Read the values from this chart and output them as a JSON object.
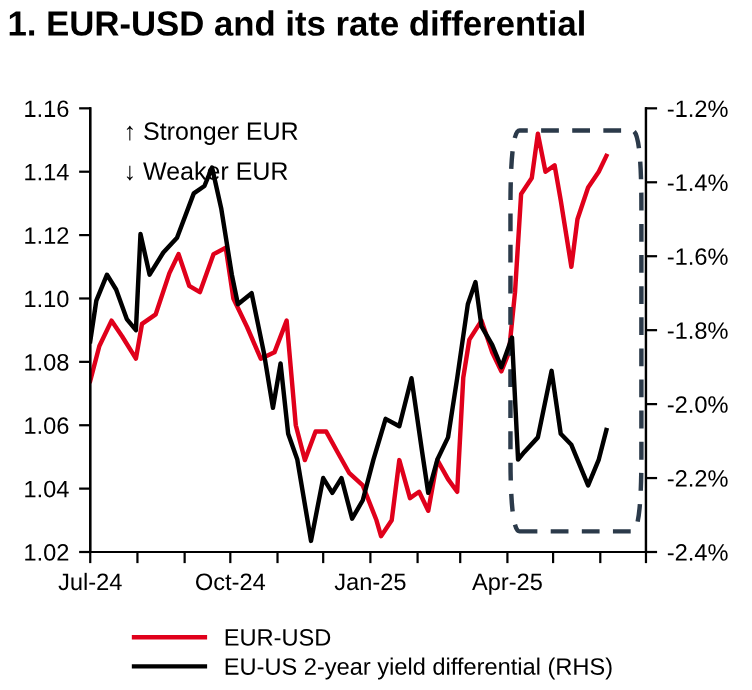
{
  "chart_data": {
    "type": "line",
    "title": "1. EUR-USD and its rate differential",
    "annotations": [
      "↑ Stronger EUR",
      "↓ Weaker EUR"
    ],
    "xlim": [
      "2024-07-01",
      "2025-07-01"
    ],
    "xticks": [
      {
        "value": "2024-07-01",
        "label": "Jul-24"
      },
      {
        "value": "2024-08-01",
        "label": null
      },
      {
        "value": "2024-09-01",
        "label": null
      },
      {
        "value": "2024-10-01",
        "label": "Oct-24"
      },
      {
        "value": "2024-11-01",
        "label": null
      },
      {
        "value": "2024-12-01",
        "label": null
      },
      {
        "value": "2025-01-01",
        "label": "Jan-25"
      },
      {
        "value": "2025-02-01",
        "label": null
      },
      {
        "value": "2025-03-01",
        "label": null
      },
      {
        "value": "2025-04-01",
        "label": "Apr-25"
      },
      {
        "value": "2025-05-01",
        "label": null
      },
      {
        "value": "2025-06-01",
        "label": null
      },
      {
        "value": "2025-07-01",
        "label": null
      }
    ],
    "ylim": [
      1.02,
      1.16
    ],
    "yticks": [
      {
        "value": 1.02,
        "label": "1.02"
      },
      {
        "value": 1.04,
        "label": "1.04"
      },
      {
        "value": 1.06,
        "label": "1.06"
      },
      {
        "value": 1.08,
        "label": "1.08"
      },
      {
        "value": 1.1,
        "label": "1.10"
      },
      {
        "value": 1.12,
        "label": "1.12"
      },
      {
        "value": 1.14,
        "label": "1.14"
      },
      {
        "value": 1.16,
        "label": "1.16"
      }
    ],
    "y2lim": [
      -2.4,
      -1.2
    ],
    "y2ticks": [
      {
        "value": -2.4,
        "label": "-2.4%"
      },
      {
        "value": -2.2,
        "label": "-2.2%"
      },
      {
        "value": -2.0,
        "label": "-2.0%"
      },
      {
        "value": -1.8,
        "label": "-1.8%"
      },
      {
        "value": -1.6,
        "label": "-1.6%"
      },
      {
        "value": -1.4,
        "label": "-1.4%"
      },
      {
        "value": -1.2,
        "label": "-1.2%"
      }
    ],
    "grid": false,
    "legend": "bottom",
    "series": [
      {
        "name": "EUR-USD",
        "color": "#e0001b",
        "x": [
          "2024-07-01",
          "2024-07-07",
          "2024-07-15",
          "2024-07-22",
          "2024-07-31",
          "2024-08-04",
          "2024-08-13",
          "2024-08-22",
          "2024-08-28",
          "2024-09-04",
          "2024-09-11",
          "2024-09-20",
          "2024-09-28",
          "2024-10-03",
          "2024-10-12",
          "2024-10-21",
          "2024-10-30",
          "2024-11-07",
          "2024-11-13",
          "2024-11-19",
          "2024-11-26",
          "2024-12-03",
          "2024-12-11",
          "2024-12-18",
          "2024-12-27",
          "2025-01-05",
          "2025-01-08",
          "2025-01-15",
          "2025-01-20",
          "2025-01-27",
          "2025-02-02",
          "2025-02-08",
          "2025-02-14",
          "2025-02-21",
          "2025-02-27",
          "2025-03-03",
          "2025-03-07",
          "2025-03-15",
          "2025-03-22",
          "2025-03-28",
          "2025-04-02",
          "2025-04-06",
          "2025-04-10",
          "2025-04-17",
          "2025-04-21",
          "2025-04-26",
          "2025-05-02",
          "2025-05-06",
          "2025-05-13",
          "2025-05-17",
          "2025-05-24",
          "2025-05-31",
          "2025-06-05"
        ],
        "values": [
          1.074,
          1.085,
          1.093,
          1.088,
          1.081,
          1.092,
          1.095,
          1.108,
          1.114,
          1.104,
          1.102,
          1.114,
          1.116,
          1.1,
          1.091,
          1.081,
          1.083,
          1.093,
          1.06,
          1.049,
          1.058,
          1.058,
          1.051,
          1.045,
          1.041,
          1.03,
          1.025,
          1.03,
          1.049,
          1.037,
          1.039,
          1.033,
          1.049,
          1.043,
          1.039,
          1.075,
          1.087,
          1.093,
          1.083,
          1.077,
          1.083,
          1.102,
          1.133,
          1.138,
          1.152,
          1.14,
          1.142,
          1.131,
          1.11,
          1.125,
          1.135,
          1.14,
          1.145
        ]
      },
      {
        "name": "EU-US 2-year yield differential (RHS)",
        "color": "#000000",
        "axis": "y2",
        "x": [
          "2024-07-01",
          "2024-07-05",
          "2024-07-12",
          "2024-07-18",
          "2024-07-25",
          "2024-07-31",
          "2024-08-03",
          "2024-08-09",
          "2024-08-18",
          "2024-08-27",
          "2024-09-07",
          "2024-09-14",
          "2024-09-19",
          "2024-09-25",
          "2024-10-02",
          "2024-10-06",
          "2024-10-15",
          "2024-10-23",
          "2024-10-29",
          "2024-11-03",
          "2024-11-08",
          "2024-11-14",
          "2024-11-23",
          "2024-12-01",
          "2024-12-07",
          "2024-12-13",
          "2024-12-20",
          "2024-12-27",
          "2025-01-03",
          "2025-01-11",
          "2025-01-20",
          "2025-01-28",
          "2025-02-04",
          "2025-02-08",
          "2025-02-14",
          "2025-02-21",
          "2025-02-27",
          "2025-03-06",
          "2025-03-11",
          "2025-03-15",
          "2025-03-22",
          "2025-03-28",
          "2025-04-04",
          "2025-04-08",
          "2025-04-12",
          "2025-04-21",
          "2025-04-30",
          "2025-05-06",
          "2025-05-13",
          "2025-05-24",
          "2025-05-31",
          "2025-06-05"
        ],
        "values": [
          -1.83,
          -1.72,
          -1.65,
          -1.69,
          -1.77,
          -1.8,
          -1.54,
          -1.65,
          -1.59,
          -1.55,
          -1.43,
          -1.41,
          -1.36,
          -1.47,
          -1.65,
          -1.73,
          -1.7,
          -1.86,
          -2.01,
          -1.89,
          -2.08,
          -2.15,
          -2.37,
          -2.2,
          -2.24,
          -2.2,
          -2.31,
          -2.26,
          -2.15,
          -2.04,
          -2.06,
          -1.93,
          -2.13,
          -2.24,
          -2.15,
          -2.09,
          -1.93,
          -1.73,
          -1.67,
          -1.79,
          -1.84,
          -1.9,
          -1.82,
          -2.15,
          -2.13,
          -2.09,
          -1.91,
          -2.08,
          -2.11,
          -2.22,
          -2.15,
          -2.07
        ]
      }
    ]
  }
}
